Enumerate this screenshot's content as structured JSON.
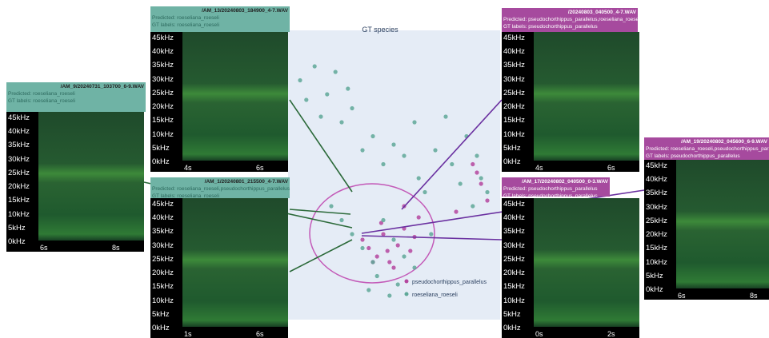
{
  "chart_data": {
    "type": "scatter",
    "title": "GT species",
    "xlim": [
      0,
      100
    ],
    "ylim": [
      0,
      100
    ],
    "series": [
      {
        "name": "pseudochorthippus_parallelus",
        "color": "#b5479f",
        "x": [
          35,
          38,
          42,
          45,
          48,
          52,
          55,
          58,
          60,
          50,
          40,
          44,
          90,
          92,
          95,
          88,
          80,
          55,
          62,
          47
        ],
        "y": [
          28,
          25,
          22,
          30,
          20,
          26,
          32,
          24,
          29,
          18,
          20,
          34,
          52,
          48,
          42,
          55,
          38,
          40,
          36,
          24
        ]
      },
      {
        "name": "roeseliana_roeseli",
        "color": "#5fa898",
        "x": [
          5,
          8,
          12,
          15,
          18,
          22,
          25,
          28,
          30,
          35,
          40,
          45,
          50,
          55,
          60,
          62,
          65,
          70,
          75,
          78,
          82,
          85,
          88,
          90,
          92,
          95,
          30,
          35,
          40,
          45,
          50,
          55,
          60,
          38,
          42,
          48,
          52,
          20,
          25,
          68
        ],
        "y": [
          85,
          78,
          90,
          72,
          80,
          88,
          70,
          82,
          75,
          60,
          65,
          55,
          62,
          58,
          70,
          50,
          45,
          60,
          72,
          55,
          48,
          65,
          40,
          58,
          50,
          45,
          30,
          25,
          20,
          35,
          28,
          22,
          18,
          10,
          15,
          8,
          12,
          40,
          35,
          30
        ]
      }
    ]
  },
  "frequency_labels": [
    "45kHz",
    "40kHz",
    "35kHz",
    "30kHz",
    "25kHz",
    "20kHz",
    "15kHz",
    "10kHz",
    "5kHz",
    "0kHz"
  ],
  "panels": [
    {
      "file": "/AM_13/20240803_184900_4-7.WAV",
      "predicted": "Predicted: roeseliana_roeseli",
      "gt": "GT labels: roeseliana_roeseli",
      "times": [
        "4s",
        "6s"
      ]
    },
    {
      "file": "/AM_9/20240731_103700_6-9.WAV",
      "predicted": "Predicted: roeseliana_roeseli",
      "gt": "GT labels: roeseliana_roeseli",
      "times": [
        "6s",
        "8s"
      ]
    },
    {
      "file": "/AM_1/20240801_215500_4-7.WAV",
      "predicted": "Predicted: roeseliana_roeseli,pseudochorthippus_parallelus",
      "gt": "GT labels: roeseliana_roeseli",
      "times": [
        "1s",
        "6s"
      ]
    },
    {
      "file": "/20240803_040500_4-7.WAV",
      "predicted": "Predicted: pseudochorthippus_parallelus,roeseliana_roeseli",
      "gt": "GT labels: pseudochorthippus_parallelus",
      "times": [
        "4s",
        "6s"
      ]
    },
    {
      "file": "/AM_17/20240802_040500_0-3.WAV",
      "predicted": "Predicted: pseudochorthippus_parallelus",
      "gt": "GT labels: pseudochorthippus_parallelus",
      "times": [
        "0s",
        "2s"
      ]
    },
    {
      "file": "/AM_19/20240802_045600_6-9.WAV",
      "predicted": "Predicted: roeseliana_roeseli,pseudochorthippus_paralle",
      "gt": "GT labels: pseudochorthippus_parallelus",
      "times": [
        "6s",
        "8s"
      ]
    }
  ]
}
